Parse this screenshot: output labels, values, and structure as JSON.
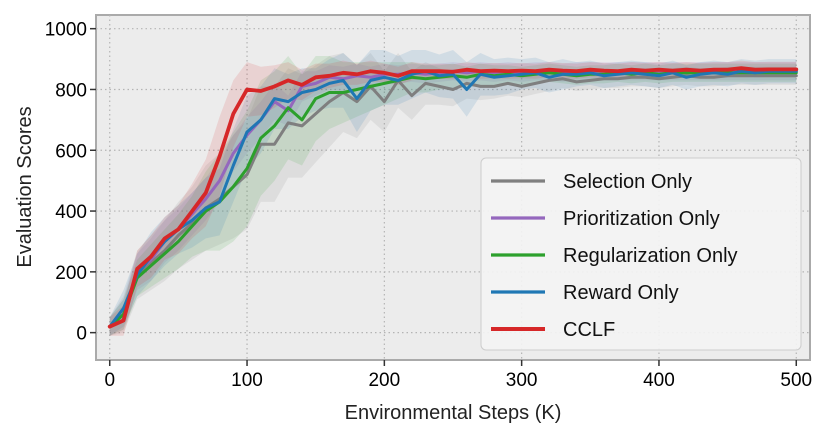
{
  "chart_data": {
    "type": "line",
    "title": "",
    "xlabel": "Environmental Steps (K)",
    "ylabel": "Evaluation Scores",
    "xlim": [
      -10,
      510
    ],
    "ylim": [
      -90,
      1045
    ],
    "xticks": [
      0,
      100,
      200,
      300,
      400,
      500
    ],
    "yticks": [
      0,
      200,
      400,
      600,
      800,
      1000
    ],
    "xtick_labels": [
      "0",
      "100",
      "200",
      "300",
      "400",
      "500"
    ],
    "ytick_labels": [
      "0",
      "200",
      "400",
      "600",
      "800",
      "1000"
    ],
    "grid": true,
    "legend_position": "right-middle",
    "x": [
      0,
      10,
      20,
      30,
      40,
      50,
      60,
      70,
      80,
      90,
      100,
      110,
      120,
      130,
      140,
      150,
      160,
      170,
      180,
      190,
      200,
      210,
      220,
      230,
      240,
      250,
      260,
      270,
      280,
      290,
      300,
      310,
      320,
      330,
      340,
      350,
      360,
      370,
      380,
      390,
      400,
      410,
      420,
      430,
      440,
      450,
      460,
      470,
      480,
      490,
      500
    ],
    "series": [
      {
        "name": "Selection Only",
        "color": "#7f7f7f",
        "values": [
          20,
          60,
          190,
          230,
          270,
          320,
          360,
          410,
          440,
          480,
          520,
          620,
          620,
          690,
          680,
          720,
          760,
          790,
          760,
          810,
          760,
          830,
          780,
          820,
          810,
          800,
          820,
          810,
          810,
          820,
          810,
          820,
          830,
          835,
          825,
          830,
          835,
          835,
          840,
          840,
          835,
          840,
          845,
          840,
          840,
          845,
          845,
          845,
          845,
          845,
          845
        ],
        "band": [
          30,
          60,
          80,
          90,
          100,
          110,
          120,
          140,
          150,
          170,
          180,
          190,
          190,
          180,
          170,
          160,
          150,
          130,
          120,
          110,
          100,
          90,
          80,
          70,
          60,
          55,
          50,
          45,
          40,
          40,
          35,
          35,
          35,
          30,
          30,
          30,
          30,
          30,
          30,
          30,
          30,
          30,
          30,
          30,
          30,
          30,
          30,
          30,
          30,
          30,
          30
        ]
      },
      {
        "name": "Prioritization Only",
        "color": "#9467bd",
        "values": [
          20,
          60,
          200,
          240,
          300,
          340,
          390,
          440,
          500,
          590,
          650,
          700,
          760,
          730,
          810,
          820,
          840,
          835,
          845,
          840,
          850,
          850,
          855,
          850,
          855,
          860,
          855,
          860,
          855,
          860,
          855,
          860,
          860,
          855,
          860,
          860,
          860,
          860,
          860,
          860,
          860,
          860,
          860,
          860,
          860,
          860,
          860,
          860,
          860,
          860,
          860
        ],
        "band": [
          30,
          50,
          60,
          70,
          70,
          70,
          70,
          70,
          70,
          60,
          60,
          60,
          60,
          50,
          50,
          40,
          40,
          40,
          40,
          35,
          35,
          30,
          30,
          30,
          30,
          30,
          30,
          30,
          30,
          30,
          30,
          30,
          30,
          30,
          30,
          30,
          30,
          30,
          30,
          30,
          30,
          30,
          30,
          30,
          30,
          30,
          30,
          30,
          30,
          30,
          30
        ]
      },
      {
        "name": "Regularization Only",
        "color": "#2ca02c",
        "values": [
          20,
          60,
          180,
          220,
          260,
          300,
          350,
          400,
          430,
          480,
          540,
          640,
          680,
          740,
          700,
          770,
          790,
          790,
          800,
          810,
          820,
          830,
          840,
          835,
          840,
          845,
          840,
          850,
          845,
          850,
          845,
          850,
          855,
          850,
          845,
          850,
          850,
          855,
          850,
          855,
          850,
          855,
          855,
          855,
          855,
          855,
          855,
          855,
          855,
          855,
          855
        ],
        "band": [
          30,
          50,
          60,
          70,
          80,
          90,
          100,
          130,
          160,
          180,
          190,
          190,
          180,
          170,
          150,
          140,
          120,
          100,
          90,
          80,
          70,
          60,
          50,
          45,
          40,
          40,
          35,
          35,
          35,
          30,
          30,
          30,
          30,
          30,
          30,
          30,
          30,
          30,
          30,
          30,
          30,
          30,
          30,
          30,
          30,
          30,
          30,
          30,
          30,
          30,
          30
        ]
      },
      {
        "name": "Reward Only",
        "color": "#1f77b4",
        "values": [
          20,
          80,
          190,
          250,
          300,
          340,
          370,
          410,
          430,
          550,
          660,
          700,
          770,
          760,
          790,
          800,
          820,
          830,
          770,
          830,
          840,
          830,
          850,
          860,
          845,
          850,
          800,
          850,
          840,
          845,
          850,
          855,
          840,
          850,
          850,
          855,
          845,
          850,
          855,
          850,
          845,
          855,
          840,
          850,
          855,
          850,
          860,
          855,
          860,
          860,
          860
        ],
        "band": [
          30,
          60,
          70,
          80,
          80,
          80,
          90,
          100,
          110,
          120,
          120,
          110,
          100,
          90,
          80,
          70,
          80,
          90,
          110,
          100,
          90,
          80,
          80,
          70,
          70,
          80,
          90,
          70,
          60,
          60,
          50,
          50,
          50,
          50,
          40,
          40,
          40,
          40,
          40,
          40,
          40,
          40,
          40,
          40,
          40,
          40,
          40,
          40,
          40,
          40,
          40
        ]
      },
      {
        "name": "CCLF",
        "color": "#d62728",
        "values": [
          20,
          40,
          210,
          250,
          310,
          340,
          400,
          460,
          580,
          720,
          800,
          795,
          810,
          830,
          815,
          840,
          845,
          855,
          850,
          860,
          855,
          845,
          860,
          860,
          860,
          858,
          865,
          860,
          862,
          860,
          862,
          860,
          865,
          862,
          860,
          865,
          862,
          860,
          865,
          862,
          865,
          862,
          865,
          862,
          865,
          865,
          870,
          865,
          866,
          866,
          866
        ],
        "band": [
          30,
          50,
          60,
          70,
          70,
          80,
          90,
          110,
          130,
          110,
          90,
          80,
          70,
          60,
          50,
          45,
          40,
          40,
          35,
          35,
          30,
          30,
          30,
          25,
          25,
          25,
          25,
          25,
          25,
          25,
          25,
          25,
          25,
          25,
          25,
          25,
          25,
          25,
          25,
          25,
          25,
          25,
          25,
          25,
          25,
          25,
          25,
          25,
          25,
          25,
          25
        ]
      }
    ]
  }
}
